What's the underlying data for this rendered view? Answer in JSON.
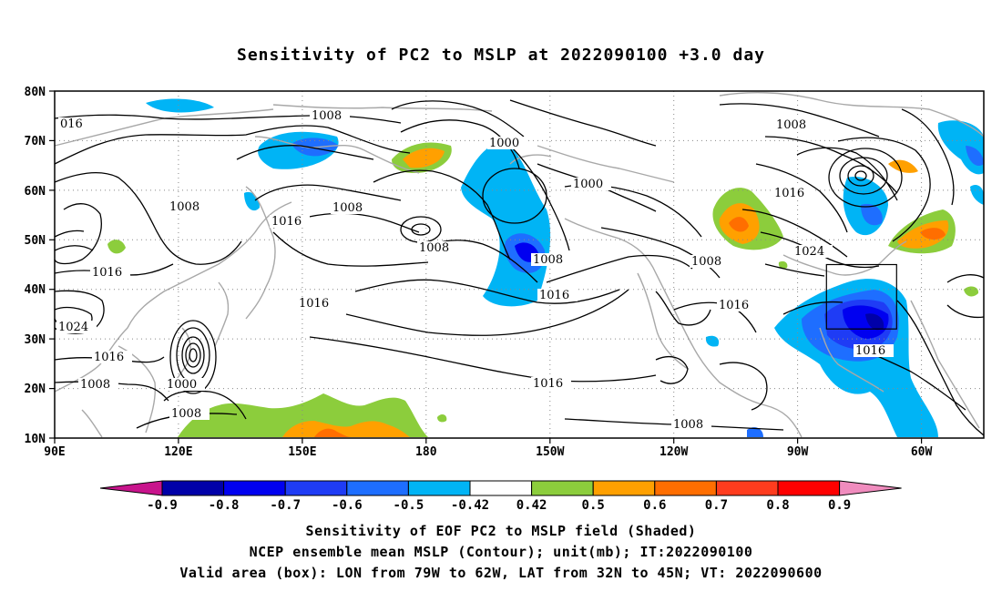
{
  "title": "Sensitivity of PC2 to MSLP at 2022090100 +3.0 day",
  "map": {
    "lat_labels": [
      "80N",
      "70N",
      "60N",
      "50N",
      "40N",
      "30N",
      "20N",
      "10N"
    ],
    "lon_labels": [
      "90E",
      "120E",
      "150E",
      "180",
      "150W",
      "120W",
      "90W",
      "60W"
    ],
    "valid_box": {
      "lon_min": -79,
      "lon_max": -62,
      "lat_min": 32,
      "lat_max": 45
    }
  },
  "contour_labels": [
    "016",
    "1008",
    "1008",
    "1008",
    "1000",
    "1000",
    "1008",
    "1016",
    "1016",
    "1008",
    "1016",
    "1024",
    "1016",
    "1008",
    "1016",
    "1024",
    "1016",
    "1008",
    "1000",
    "1008",
    "1016",
    "1008",
    "1008",
    "1016",
    "1016"
  ],
  "colorbar": {
    "labels": [
      "-0.9",
      "-0.8",
      "-0.7",
      "-0.6",
      "-0.5",
      "-0.42",
      "0.42",
      "0.5",
      "0.6",
      "0.7",
      "0.8",
      "0.9"
    ],
    "colors": [
      "#0000a8",
      "#0000f0",
      "#1f3cf5",
      "#1e6eff",
      "#00b4f5",
      "#ffffff",
      "#8ccd3c",
      "#ffa000",
      "#ff6e00",
      "#ff3c1e",
      "#ff0000"
    ],
    "low_color": "#c8148c",
    "high_color": "#f08cbe"
  },
  "captions": [
    "Sensitivity of EOF PC2 to MSLP field (Shaded)",
    "NCEP ensemble mean MSLP (Contour); unit(mb); IT:2022090100",
    "Valid area (box): LON from 79W to 62W, LAT from 32N to 45N; VT: 2022090600"
  ]
}
